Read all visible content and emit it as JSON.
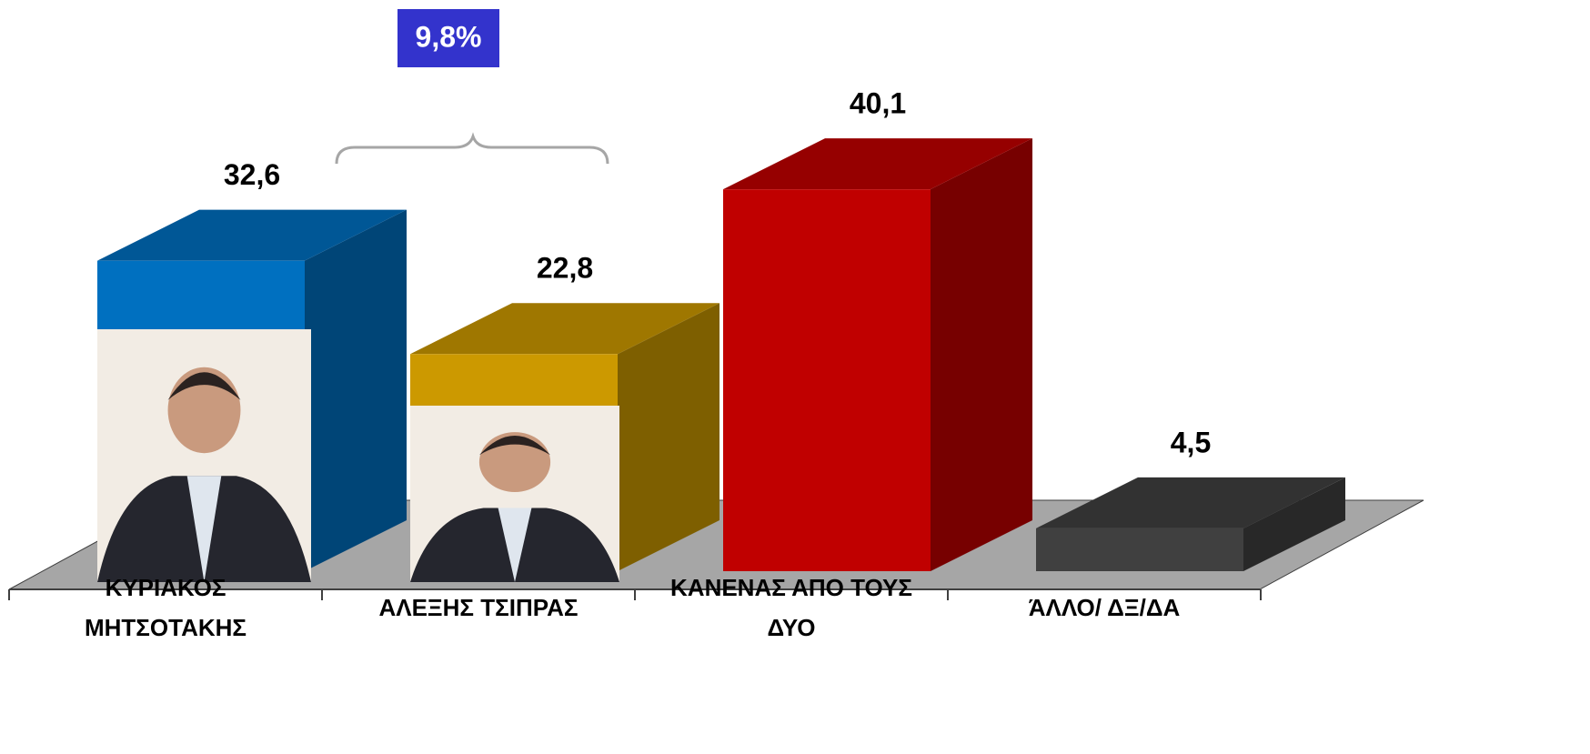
{
  "chart_data": {
    "type": "bar3d",
    "categories": [
      "ΚΥΡΙΑΚΟΣ ΜΗΤΣΟΤΑΚΗΣ",
      "ΑΛΕΞΗΣ ΤΣΙΠΡΑΣ",
      "ΚΑΝΕΝΑΣ ΑΠΟ ΤΟΥΣ ΔΥΟ",
      "ΆΛΛΟ/ ΔΞ/ΔΑ"
    ],
    "values": [
      32.6,
      22.8,
      40.1,
      4.5
    ],
    "value_labels": [
      "32,6",
      "22,8",
      "40,1",
      "4,5"
    ],
    "colors": [
      "#0070c0",
      "#cc9900",
      "#c00000",
      "#404040"
    ],
    "annotation": "9,8%"
  }
}
